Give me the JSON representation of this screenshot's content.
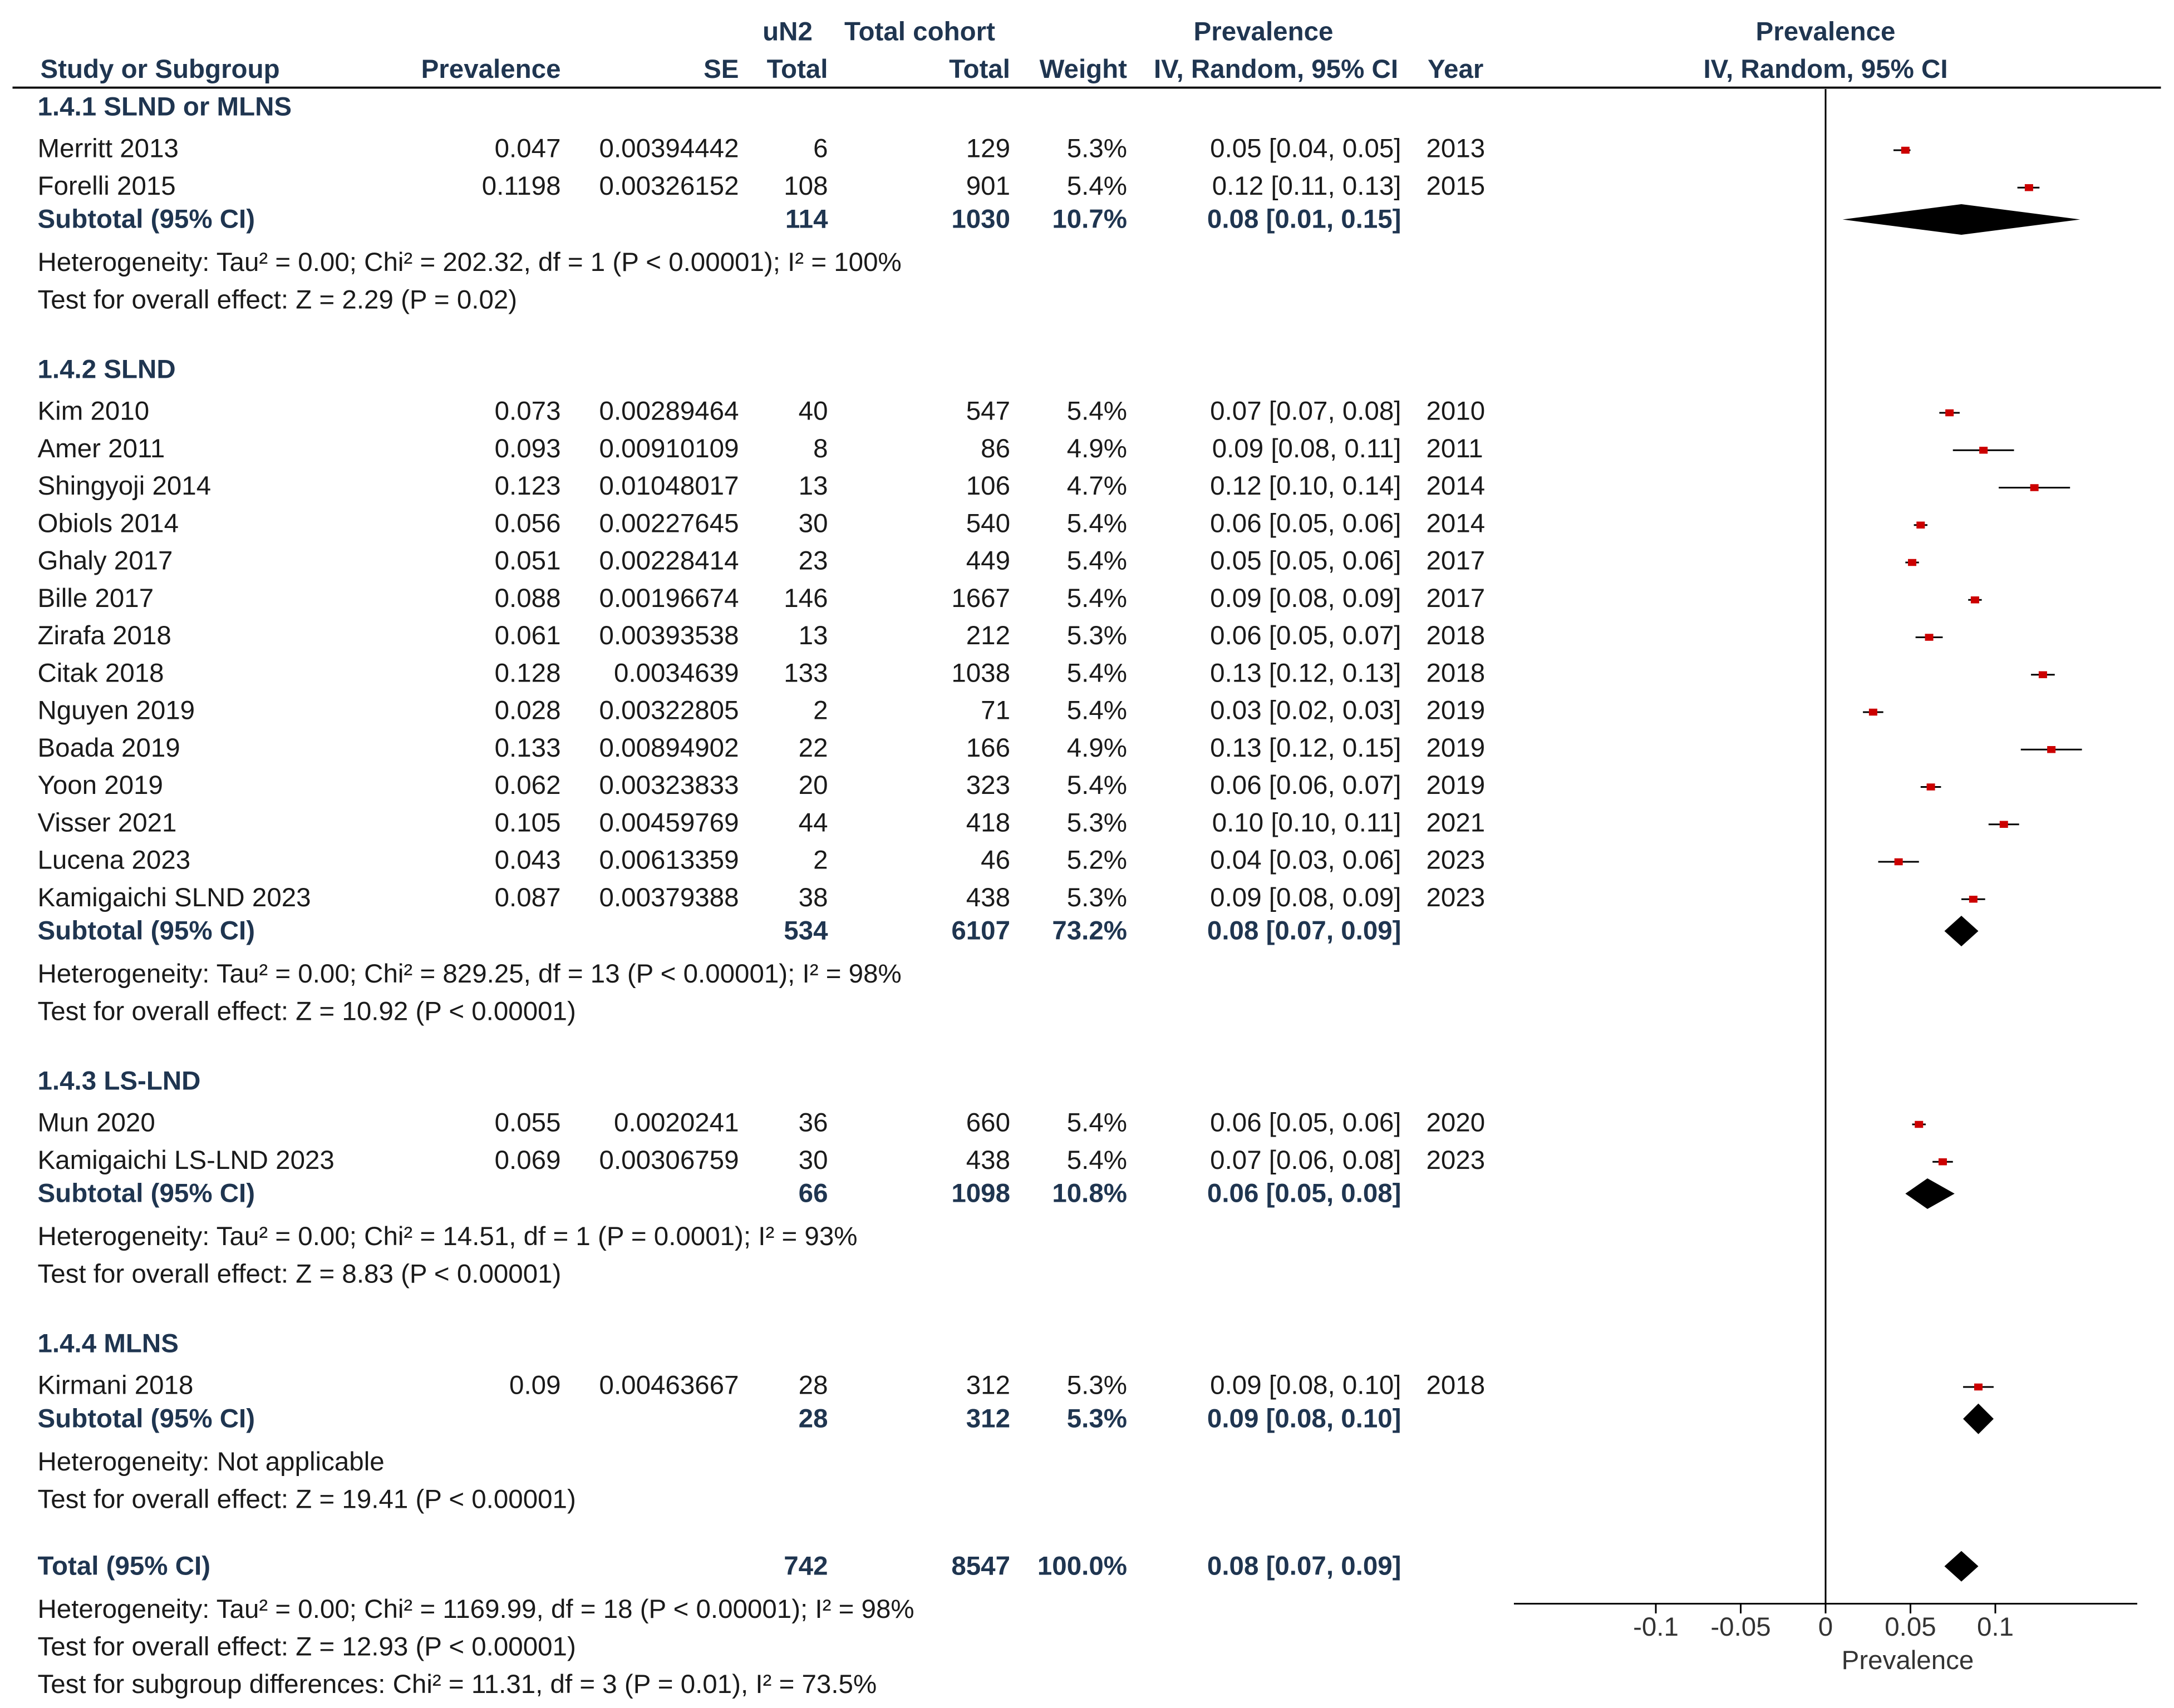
{
  "header": {
    "row1": {
      "un2": "uN2",
      "cohort": "Total cohort",
      "prev": "Prevalence",
      "plot": "Prevalence"
    },
    "row2": {
      "study": "Study or Subgroup",
      "prevalence": "Prevalence",
      "se": "SE",
      "total": "Total",
      "cohort_total": "Total",
      "weight": "Weight",
      "ci": "IV, Random, 95% CI",
      "year": "Year",
      "plot_ci": "IV, Random, 95% CI"
    }
  },
  "chart_data": {
    "type": "forest",
    "x_axis": {
      "label": "Prevalence",
      "ticks": [
        -0.1,
        -0.05,
        0,
        0.05,
        0.1
      ],
      "tick_labels": [
        "-0.1",
        "-0.05",
        "0",
        "0.05",
        "0.1"
      ],
      "range": [
        -0.2,
        0.18
      ]
    },
    "groups": [
      {
        "title": "1.4.1 SLND or MLNS",
        "studies": [
          {
            "name": "Merritt 2013",
            "prevalence": "0.047",
            "se": "0.00394442",
            "un2": "6",
            "cohort": "129",
            "weight": "5.3%",
            "ci": "0.05 [0.04, 0.05]",
            "year": "2013",
            "est": 0.047,
            "lo": 0.04,
            "hi": 0.05
          },
          {
            "name": "Forelli 2015",
            "prevalence": "0.1198",
            "se": "0.00326152",
            "un2": "108",
            "cohort": "901",
            "weight": "5.4%",
            "ci": "0.12 [0.11, 0.13]",
            "year": "2015",
            "est": 0.1198,
            "lo": 0.113,
            "hi": 0.126
          }
        ],
        "subtotal": {
          "label": "Subtotal (95% CI)",
          "un2": "114",
          "cohort": "1030",
          "weight": "10.7%",
          "ci": "0.08 [0.01, 0.15]",
          "est": 0.08,
          "lo": 0.01,
          "hi": 0.15
        },
        "heterogeneity": "Heterogeneity: Tau² = 0.00; Chi² = 202.32, df = 1 (P < 0.00001); I² = 100%",
        "overall": "Test for overall effect: Z = 2.29 (P = 0.02)"
      },
      {
        "title": "1.4.2 SLND",
        "studies": [
          {
            "name": "Kim 2010",
            "prevalence": "0.073",
            "se": "0.00289464",
            "un2": "40",
            "cohort": "547",
            "weight": "5.4%",
            "ci": "0.07 [0.07, 0.08]",
            "year": "2010",
            "est": 0.073,
            "lo": 0.067,
            "hi": 0.079
          },
          {
            "name": "Amer 2011",
            "prevalence": "0.093",
            "se": "0.00910109",
            "un2": "8",
            "cohort": "86",
            "weight": "4.9%",
            "ci": "0.09 [0.08, 0.11]",
            "year": "2011",
            "est": 0.093,
            "lo": 0.075,
            "hi": 0.111
          },
          {
            "name": "Shingyoji 2014",
            "prevalence": "0.123",
            "se": "0.01048017",
            "un2": "13",
            "cohort": "106",
            "weight": "4.7%",
            "ci": "0.12 [0.10, 0.14]",
            "year": "2014",
            "est": 0.123,
            "lo": 0.102,
            "hi": 0.144
          },
          {
            "name": "Obiols 2014",
            "prevalence": "0.056",
            "se": "0.00227645",
            "un2": "30",
            "cohort": "540",
            "weight": "5.4%",
            "ci": "0.06 [0.05, 0.06]",
            "year": "2014",
            "est": 0.056,
            "lo": 0.052,
            "hi": 0.06
          },
          {
            "name": "Ghaly 2017",
            "prevalence": "0.051",
            "se": "0.00228414",
            "un2": "23",
            "cohort": "449",
            "weight": "5.4%",
            "ci": "0.05 [0.05, 0.06]",
            "year": "2017",
            "est": 0.051,
            "lo": 0.047,
            "hi": 0.055
          },
          {
            "name": "Bille 2017",
            "prevalence": "0.088",
            "se": "0.00196674",
            "un2": "146",
            "cohort": "1667",
            "weight": "5.4%",
            "ci": "0.09 [0.08, 0.09]",
            "year": "2017",
            "est": 0.088,
            "lo": 0.084,
            "hi": 0.092
          },
          {
            "name": "Zirafa 2018",
            "prevalence": "0.061",
            "se": "0.00393538",
            "un2": "13",
            "cohort": "212",
            "weight": "5.3%",
            "ci": "0.06 [0.05, 0.07]",
            "year": "2018",
            "est": 0.061,
            "lo": 0.053,
            "hi": 0.069
          },
          {
            "name": "Citak 2018",
            "prevalence": "0.128",
            "se": "0.0034639",
            "un2": "133",
            "cohort": "1038",
            "weight": "5.4%",
            "ci": "0.13 [0.12, 0.13]",
            "year": "2018",
            "est": 0.128,
            "lo": 0.121,
            "hi": 0.135
          },
          {
            "name": "Nguyen 2019",
            "prevalence": "0.028",
            "se": "0.00322805",
            "un2": "2",
            "cohort": "71",
            "weight": "5.4%",
            "ci": "0.03 [0.02, 0.03]",
            "year": "2019",
            "est": 0.028,
            "lo": 0.022,
            "hi": 0.034
          },
          {
            "name": "Boada 2019",
            "prevalence": "0.133",
            "se": "0.00894902",
            "un2": "22",
            "cohort": "166",
            "weight": "4.9%",
            "ci": "0.13 [0.12, 0.15]",
            "year": "2019",
            "est": 0.133,
            "lo": 0.115,
            "hi": 0.151
          },
          {
            "name": "Yoon 2019",
            "prevalence": "0.062",
            "se": "0.00323833",
            "un2": "20",
            "cohort": "323",
            "weight": "5.4%",
            "ci": "0.06 [0.06, 0.07]",
            "year": "2019",
            "est": 0.062,
            "lo": 0.056,
            "hi": 0.068
          },
          {
            "name": "Visser 2021",
            "prevalence": "0.105",
            "se": "0.00459769",
            "un2": "44",
            "cohort": "418",
            "weight": "5.3%",
            "ci": "0.10 [0.10, 0.11]",
            "year": "2021",
            "est": 0.105,
            "lo": 0.096,
            "hi": 0.114
          },
          {
            "name": "Lucena 2023",
            "prevalence": "0.043",
            "se": "0.00613359",
            "un2": "2",
            "cohort": "46",
            "weight": "5.2%",
            "ci": "0.04 [0.03, 0.06]",
            "year": "2023",
            "est": 0.043,
            "lo": 0.031,
            "hi": 0.055
          },
          {
            "name": "Kamigaichi SLND 2023",
            "prevalence": "0.087",
            "se": "0.00379388",
            "un2": "38",
            "cohort": "438",
            "weight": "5.3%",
            "ci": "0.09 [0.08, 0.09]",
            "year": "2023",
            "est": 0.087,
            "lo": 0.08,
            "hi": 0.094
          }
        ],
        "subtotal": {
          "label": "Subtotal (95% CI)",
          "un2": "534",
          "cohort": "6107",
          "weight": "73.2%",
          "ci": "0.08 [0.07, 0.09]",
          "est": 0.08,
          "lo": 0.07,
          "hi": 0.09
        },
        "heterogeneity": "Heterogeneity: Tau² = 0.00; Chi² = 829.25, df = 13 (P < 0.00001); I² = 98%",
        "overall": "Test for overall effect: Z = 10.92 (P < 0.00001)"
      },
      {
        "title": "1.4.3 LS-LND",
        "studies": [
          {
            "name": "Mun 2020",
            "prevalence": "0.055",
            "se": "0.0020241",
            "un2": "36",
            "cohort": "660",
            "weight": "5.4%",
            "ci": "0.06 [0.05, 0.06]",
            "year": "2020",
            "est": 0.055,
            "lo": 0.051,
            "hi": 0.059
          },
          {
            "name": "Kamigaichi LS-LND 2023",
            "prevalence": "0.069",
            "se": "0.00306759",
            "un2": "30",
            "cohort": "438",
            "weight": "5.4%",
            "ci": "0.07 [0.06, 0.08]",
            "year": "2023",
            "est": 0.069,
            "lo": 0.063,
            "hi": 0.075
          }
        ],
        "subtotal": {
          "label": "Subtotal (95% CI)",
          "un2": "66",
          "cohort": "1098",
          "weight": "10.8%",
          "ci": "0.06 [0.05, 0.08]",
          "est": 0.06,
          "lo": 0.047,
          "hi": 0.076
        },
        "heterogeneity": "Heterogeneity: Tau² = 0.00; Chi² = 14.51, df = 1 (P = 0.0001); I² = 93%",
        "overall": "Test for overall effect: Z = 8.83 (P < 0.00001)"
      },
      {
        "title": "1.4.4 MLNS",
        "studies": [
          {
            "name": "Kirmani 2018",
            "prevalence": "0.09",
            "se": "0.00463667",
            "un2": "28",
            "cohort": "312",
            "weight": "5.3%",
            "ci": "0.09 [0.08, 0.10]",
            "year": "2018",
            "est": 0.09,
            "lo": 0.081,
            "hi": 0.099
          }
        ],
        "subtotal": {
          "label": "Subtotal (95% CI)",
          "un2": "28",
          "cohort": "312",
          "weight": "5.3%",
          "ci": "0.09 [0.08, 0.10]",
          "est": 0.09,
          "lo": 0.081,
          "hi": 0.099
        },
        "heterogeneity": "Heterogeneity: Not applicable",
        "overall": "Test for overall effect: Z = 19.41 (P < 0.00001)"
      }
    ],
    "total": {
      "label": "Total (95% CI)",
      "un2": "742",
      "cohort": "8547",
      "weight": "100.0%",
      "ci": "0.08 [0.07, 0.09]",
      "est": 0.08,
      "lo": 0.07,
      "hi": 0.09,
      "heterogeneity": "Heterogeneity: Tau² = 0.00; Chi² = 1169.99, df = 18 (P < 0.00001); I² = 98%",
      "overall": "Test for overall effect: Z = 12.93 (P < 0.00001)",
      "subgroup": "Test for subgroup differences: Chi² = 11.31, df = 3 (P = 0.01), I² = 73.5%"
    }
  },
  "colors": {
    "point": "#cc0000",
    "diamond": "#000000",
    "text": "#1a1a1a",
    "heading": "#1f3550",
    "axis": "#333333"
  }
}
